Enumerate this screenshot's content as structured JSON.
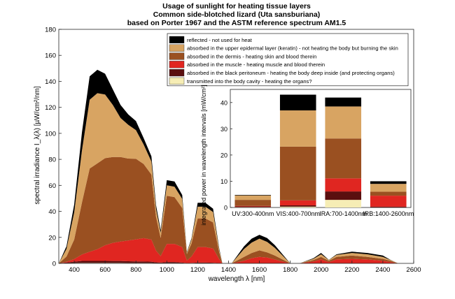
{
  "title_lines": [
    "Usage of sunlight for heating tissue layers",
    "Common side-blotched lizard (Uta sansburiana)",
    "based on Porter 1967 and the ASTM reference spectrum AM1.5"
  ],
  "colors": {
    "reflected": "#000000",
    "epidermis": "#D8A462",
    "dermis": "#9A5021",
    "muscle": "#E02621",
    "peritoneum": "#5B0F0F",
    "transmitted": "#F6EDB5"
  },
  "chart_data": [
    {
      "type": "area",
      "xlabel": "wavelength λ [nm]",
      "ylabel": "spectral irradiance I_λ(λ) [µW/cm²/nm]",
      "xlim": [
        300,
        2600
      ],
      "ylim": [
        0,
        180
      ],
      "xticks": [
        400,
        600,
        800,
        1000,
        1200,
        1400,
        1600,
        1800,
        2000,
        2200,
        2400,
        2600
      ],
      "yticks": [
        0,
        20,
        40,
        60,
        80,
        100,
        120,
        140,
        160,
        180
      ],
      "legend_position": "top-right",
      "x": [
        300,
        350,
        400,
        450,
        500,
        550,
        600,
        650,
        700,
        750,
        800,
        850,
        900,
        930,
        960,
        1000,
        1050,
        1100,
        1130,
        1160,
        1200,
        1250,
        1300,
        1340,
        1360,
        1420,
        1500,
        1550,
        1600,
        1650,
        1700,
        1750,
        1800,
        1840,
        1860,
        1950,
        2000,
        2050,
        2100,
        2200,
        2300,
        2400,
        2450,
        2500,
        2600
      ],
      "series": [
        {
          "name": "transmitted into the body cavity - heating the organs?",
          "values": [
            0,
            0.2,
            0.3,
            0.4,
            0.4,
            0.4,
            0.4,
            0.4,
            0.4,
            0.3,
            0.3,
            0.3,
            0.3,
            0.2,
            0.2,
            0.2,
            0.2,
            0.1,
            0.1,
            0.1,
            0.1,
            0.1,
            0.1,
            0,
            0,
            0,
            0,
            0,
            0,
            0,
            0,
            0,
            0,
            0,
            0,
            0,
            0,
            0,
            0,
            0,
            0,
            0,
            0,
            0,
            0
          ]
        },
        {
          "name": "absorbed in the black peritoneum - heating the body deep inside (and protecting organs)",
          "values": [
            0,
            0.5,
            1,
            1.5,
            1.5,
            1.5,
            1.5,
            1.4,
            1.4,
            1.3,
            1.2,
            1.1,
            1,
            0.6,
            0.4,
            0.8,
            0.8,
            0.5,
            0.1,
            0.2,
            0.5,
            0.5,
            0.4,
            0.1,
            0,
            0,
            0,
            0,
            0,
            0,
            0,
            0,
            0,
            0,
            0,
            0,
            0,
            0,
            0,
            0,
            0,
            0,
            0,
            0,
            0
          ]
        },
        {
          "name": "absorbed in the muscle - heating muscle and blood therein",
          "values": [
            0,
            0.5,
            2,
            5,
            7,
            9,
            12,
            14,
            15,
            16,
            17,
            18,
            17,
            9,
            5,
            14,
            14,
            12,
            2,
            5,
            12,
            12,
            11,
            3,
            0,
            0,
            2,
            4,
            5,
            4.5,
            3,
            1.5,
            0,
            0,
            0,
            1.5,
            3,
            1,
            3,
            3.5,
            3,
            2,
            1,
            0,
            0
          ]
        },
        {
          "name": "absorbed in the dermis - heating skin and blood therein",
          "values": [
            0,
            4,
            15,
            40,
            64,
            66,
            67,
            66,
            65,
            63,
            62,
            57,
            50,
            26,
            14,
            37,
            36,
            30,
            5,
            10,
            22,
            22,
            20,
            5,
            0,
            0,
            3,
            4,
            5,
            4,
            3,
            1.5,
            0,
            0,
            0,
            1,
            2,
            1,
            2,
            2.5,
            2,
            1.5,
            1,
            0,
            0
          ]
        },
        {
          "name": "absorbed in the upper epidermal layer (keratin) - not heating the body but burning the skin",
          "values": [
            0,
            6,
            21,
            40,
            53,
            54,
            49,
            40,
            30,
            26,
            22,
            15,
            10,
            6,
            4,
            8,
            8,
            7,
            1,
            3,
            9,
            9,
            8,
            2,
            0,
            0,
            6,
            8,
            9,
            8,
            6,
            3,
            0,
            0,
            0,
            1,
            2,
            0.5,
            1.5,
            2,
            2,
            1.5,
            0.5,
            0,
            0
          ]
        },
        {
          "name": "reflected - not used for heat",
          "values": [
            0,
            2,
            6,
            14,
            18,
            18,
            16,
            12,
            10,
            8,
            7,
            5,
            4,
            3,
            2,
            4,
            4,
            3,
            0.5,
            1,
            3,
            3,
            2.5,
            1,
            0,
            0,
            2,
            3,
            3,
            3,
            2,
            1,
            0,
            0,
            0,
            0.5,
            1,
            0.2,
            0.5,
            1,
            1,
            1,
            0.2,
            0,
            0
          ]
        }
      ]
    },
    {
      "type": "bar",
      "stacked": true,
      "ylabel": "integrated power in wavelength intervals [mW/cm²]",
      "ylim": [
        0,
        45
      ],
      "yticks": [
        0,
        10,
        20,
        30,
        40
      ],
      "categories": [
        "UV:300-400nm",
        "VIS:400-700nm",
        "IRA:700-1400nm",
        "IRB:1400-2600nm"
      ],
      "series": [
        {
          "name": "transmitted into the body cavity - heating the organs?",
          "values": [
            0.1,
            0.3,
            2.9,
            0
          ]
        },
        {
          "name": "absorbed in the black peritoneum - heating the body deep inside (and protecting organs)",
          "values": [
            0.3,
            0.5,
            3.2,
            0.3
          ]
        },
        {
          "name": "absorbed in the muscle - heating muscle and blood therein",
          "values": [
            0.2,
            1.9,
            5.0,
            4.2
          ]
        },
        {
          "name": "absorbed in the dermis - heating skin and blood therein",
          "values": [
            2.3,
            20.5,
            15.2,
            1.5
          ]
        },
        {
          "name": "absorbed in the upper epidermal layer (keratin) - not heating the body but burning the skin",
          "values": [
            1.7,
            13.8,
            12.2,
            3.0
          ]
        },
        {
          "name": "reflected - not used for heat",
          "values": [
            0.2,
            6.0,
            3.4,
            1.0
          ]
        }
      ]
    }
  ]
}
